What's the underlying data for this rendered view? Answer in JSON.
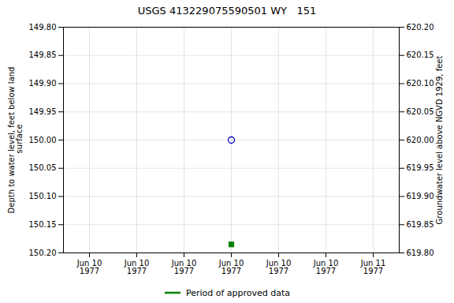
{
  "chart_data": {
    "type": "scatter",
    "title": "USGS 413229075590501 WY   151",
    "ylabel": "Depth to water level, feet below land\n surface",
    "y2label": "Groundwater level above NGVD 1929, feet",
    "categories": [
      "Jun 10\n1977",
      "Jun 10\n1977",
      "Jun 10\n1977",
      "Jun 10\n1977",
      "Jun 10\n1977",
      "Jun 10\n1977",
      "Jun 11\n1977"
    ],
    "series": [
      {
        "color": "#0000cc",
        "marker": "open circle",
        "values": [
          null,
          null,
          null,
          150.0,
          null,
          null,
          null
        ]
      },
      {
        "name": "Period of approved data",
        "color": "#008000",
        "marker": "square",
        "values": [
          null,
          null,
          null,
          150.185,
          null,
          null,
          null
        ]
      }
    ],
    "ylim": [
      150.2,
      149.8
    ],
    "yticks": [
      {
        "value": 149.8,
        "label": "149.80"
      },
      149.85,
      {
        "value": 149.9,
        "label": "149.90"
      },
      149.95,
      {
        "value": 150.0,
        "label": "150.00"
      },
      150.05,
      {
        "value": 150.1,
        "label": "150.10"
      },
      150.15,
      {
        "value": 150.2,
        "label": "150.20"
      }
    ],
    "y2lim": [
      619.8,
      620.2
    ],
    "y2ticks": [
      {
        "value": 619.8,
        "label": "619.80"
      },
      619.85,
      {
        "value": 619.9,
        "label": "619.90"
      },
      619.95,
      {
        "value": 620.0,
        "label": "620.00"
      },
      620.05,
      {
        "value": 620.1,
        "label": "620.10"
      },
      620.15,
      {
        "value": 620.2,
        "label": "620.20"
      }
    ],
    "grid": true,
    "legend": "lower center"
  }
}
